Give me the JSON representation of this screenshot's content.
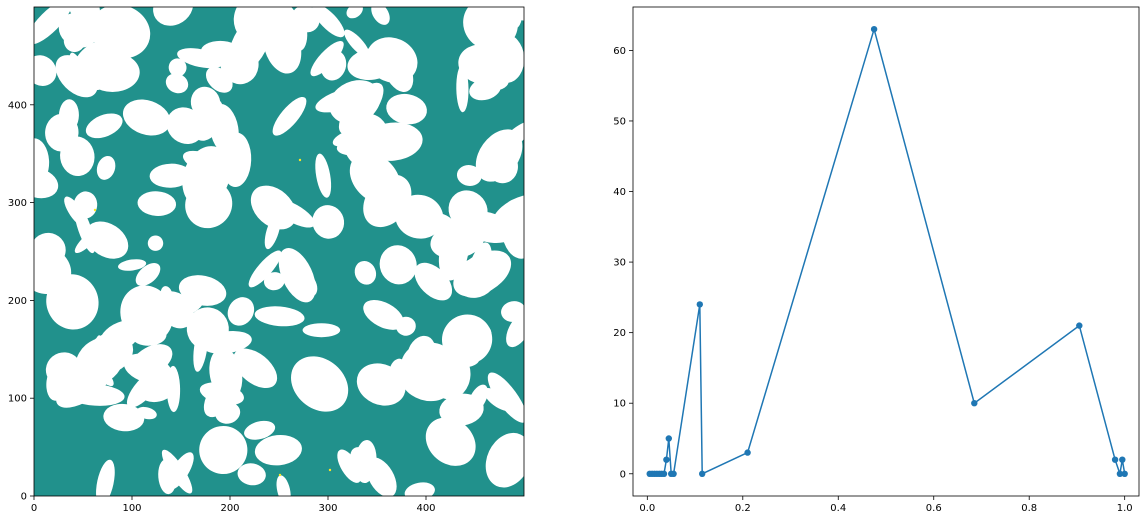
{
  "chart_data": [
    {
      "type": "heatmap",
      "xlim": [
        0,
        500
      ],
      "ylim": [
        0,
        500
      ],
      "x_ticks": [
        "0",
        "100",
        "200",
        "300",
        "400"
      ],
      "y_ticks": [
        "0",
        "100",
        "200",
        "300",
        "400"
      ],
      "colors": {
        "foreground": "#21918c",
        "background": "#ffffff",
        "minor": "#fde725"
      }
    },
    {
      "type": "line",
      "marker": "circle",
      "color": "#1f77b4",
      "xlim": [
        -0.03,
        1.03
      ],
      "ylim": [
        -3.15,
        66.15
      ],
      "x_ticks": [
        "0.0",
        "0.2",
        "0.4",
        "0.6",
        "0.8",
        "1.0"
      ],
      "y_ticks": [
        "0",
        "10",
        "20",
        "30",
        "40",
        "50",
        "60"
      ],
      "x": [
        0.005,
        0.01,
        0.015,
        0.02,
        0.025,
        0.03,
        0.035,
        0.04,
        0.045,
        0.05,
        0.055,
        0.11,
        0.115,
        0.21,
        0.475,
        0.685,
        0.905,
        0.98,
        0.99,
        0.995,
        1.0
      ],
      "y": [
        0,
        0,
        0,
        0,
        0,
        0,
        0,
        2,
        5,
        0,
        0,
        24,
        0,
        3,
        63,
        10,
        21,
        2,
        0,
        2,
        0
      ]
    }
  ]
}
